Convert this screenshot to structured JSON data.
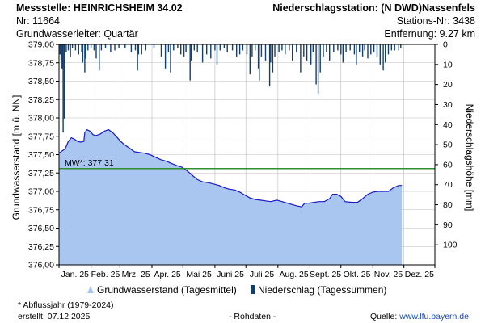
{
  "header": {
    "station_label": "Messstelle: HEINRICHSHEIM 34.02",
    "station_nr": "Nr: 11664",
    "aquifer": "Grundwasserleiter: Quartär",
    "precip_station": "Niederschlagsstation: (N DWD)Nassenfels",
    "precip_station_nr": "Stations-Nr: 3438",
    "distance": "Entfernung: 9.27 km"
  },
  "legend": {
    "gw_label": "Grundwasserstand (Tagesmittel)",
    "precip_label": "Niederschlag (Tagessummen)"
  },
  "footer": {
    "note": "* Abflussjahr (1979-2024)",
    "created": "erstellt:  07.12.2025",
    "raw": "- Rohdaten -",
    "source_prefix": "Quelle: ",
    "source_link": "www.lfu.bayern.de"
  },
  "colors": {
    "gw_fill": "#a8c6ef",
    "gw_line": "#1a1ac8",
    "precip_bar": "#123f70",
    "mean_line": "#2f8f2f",
    "grid": "#bdbdbd"
  },
  "chart_data": {
    "type": "area",
    "x_tick_labels": [
      "Jan. 25",
      "Feb. 25",
      "Mrz. 25",
      "Apr. 25",
      "Mai 25",
      "Juni 25",
      "Juli 25",
      "Aug. 25",
      "Sept. 25",
      "Okt. 25",
      "Nov. 25",
      "Dez. 25"
    ],
    "xlim": [
      "2025-01-01",
      "2025-12-31"
    ],
    "ylabel_left": "Grundwasserstand [m ü. NN]",
    "ylim_left": [
      376.0,
      379.0
    ],
    "yticks_left": [
      "376,00",
      "376,25",
      "376,50",
      "376,75",
      "377,00",
      "377,25",
      "377,50",
      "377,75",
      "378,00",
      "378,25",
      "378,50",
      "378,75",
      "379,00"
    ],
    "ylabel_right": "Niederschlagshöhe [mm]",
    "ylim_right": [
      0,
      110
    ],
    "ylim_right_inverted": true,
    "yticks_right": [
      "0",
      "10",
      "20",
      "30",
      "40",
      "50",
      "60",
      "70",
      "80",
      "90",
      "100"
    ],
    "mean_line": {
      "label": "MW*: 377.31",
      "value": 377.31
    },
    "groundwater": {
      "name": "Grundwasserstand (Tagesmittel)",
      "points": [
        [
          "2025-01-01",
          377.52
        ],
        [
          "2025-01-04",
          377.55
        ],
        [
          "2025-01-07",
          377.58
        ],
        [
          "2025-01-10",
          377.68
        ],
        [
          "2025-01-13",
          377.73
        ],
        [
          "2025-01-16",
          377.71
        ],
        [
          "2025-01-19",
          377.68
        ],
        [
          "2025-01-22",
          377.67
        ],
        [
          "2025-01-25",
          377.68
        ],
        [
          "2025-01-26",
          377.8
        ],
        [
          "2025-01-28",
          377.84
        ],
        [
          "2025-01-31",
          377.82
        ],
        [
          "2025-02-03",
          377.77
        ],
        [
          "2025-02-06",
          377.76
        ],
        [
          "2025-02-10",
          377.78
        ],
        [
          "2025-02-14",
          377.82
        ],
        [
          "2025-02-18",
          377.84
        ],
        [
          "2025-02-22",
          377.8
        ],
        [
          "2025-02-26",
          377.74
        ],
        [
          "2025-03-01",
          377.69
        ],
        [
          "2025-03-05",
          377.64
        ],
        [
          "2025-03-10",
          377.59
        ],
        [
          "2025-03-15",
          377.54
        ],
        [
          "2025-03-20",
          377.53
        ],
        [
          "2025-03-25",
          377.52
        ],
        [
          "2025-03-30",
          377.5
        ],
        [
          "2025-04-05",
          377.46
        ],
        [
          "2025-04-10",
          377.43
        ],
        [
          "2025-04-15",
          377.41
        ],
        [
          "2025-04-20",
          377.38
        ],
        [
          "2025-04-25",
          377.35
        ],
        [
          "2025-04-30",
          377.33
        ],
        [
          "2025-05-05",
          377.28
        ],
        [
          "2025-05-10",
          377.22
        ],
        [
          "2025-05-15",
          377.16
        ],
        [
          "2025-05-20",
          377.13
        ],
        [
          "2025-05-25",
          377.12
        ],
        [
          "2025-05-31",
          377.1
        ],
        [
          "2025-06-05",
          377.08
        ],
        [
          "2025-06-10",
          377.05
        ],
        [
          "2025-06-15",
          377.03
        ],
        [
          "2025-06-20",
          377.02
        ],
        [
          "2025-06-25",
          376.99
        ],
        [
          "2025-06-30",
          376.95
        ],
        [
          "2025-07-05",
          376.91
        ],
        [
          "2025-07-10",
          376.89
        ],
        [
          "2025-07-15",
          376.88
        ],
        [
          "2025-07-20",
          376.87
        ],
        [
          "2025-07-25",
          376.86
        ],
        [
          "2025-07-31",
          376.88
        ],
        [
          "2025-08-05",
          376.86
        ],
        [
          "2025-08-10",
          376.84
        ],
        [
          "2025-08-15",
          376.82
        ],
        [
          "2025-08-20",
          376.8
        ],
        [
          "2025-08-24",
          376.79
        ],
        [
          "2025-08-27",
          376.84
        ],
        [
          "2025-08-31",
          376.84
        ],
        [
          "2025-09-05",
          376.85
        ],
        [
          "2025-09-10",
          376.86
        ],
        [
          "2025-09-15",
          376.86
        ],
        [
          "2025-09-20",
          376.9
        ],
        [
          "2025-09-23",
          376.96
        ],
        [
          "2025-09-27",
          376.96
        ],
        [
          "2025-10-01",
          376.93
        ],
        [
          "2025-10-05",
          376.86
        ],
        [
          "2025-10-12",
          376.85
        ],
        [
          "2025-10-17",
          376.85
        ],
        [
          "2025-10-22",
          376.9
        ],
        [
          "2025-10-27",
          376.96
        ],
        [
          "2025-11-01",
          376.99
        ],
        [
          "2025-11-06",
          377.0
        ],
        [
          "2025-11-11",
          377.0
        ],
        [
          "2025-11-16",
          377.0
        ],
        [
          "2025-11-21",
          377.05
        ],
        [
          "2025-11-26",
          377.08
        ],
        [
          "2025-11-29",
          377.08
        ]
      ]
    },
    "precipitation": {
      "name": "Niederschlag (Tagessummen)",
      "points": [
        [
          "2025-01-02",
          5
        ],
        [
          "2025-01-03",
          8
        ],
        [
          "2025-01-04",
          12
        ],
        [
          "2025-01-05",
          44
        ],
        [
          "2025-01-06",
          37
        ],
        [
          "2025-01-08",
          4
        ],
        [
          "2025-01-10",
          3
        ],
        [
          "2025-01-12",
          6
        ],
        [
          "2025-01-14",
          2
        ],
        [
          "2025-01-17",
          3
        ],
        [
          "2025-01-20",
          5
        ],
        [
          "2025-01-23",
          4
        ],
        [
          "2025-01-24",
          9
        ],
        [
          "2025-01-26",
          14
        ],
        [
          "2025-01-27",
          7
        ],
        [
          "2025-01-29",
          3
        ],
        [
          "2025-02-01",
          2
        ],
        [
          "2025-02-04",
          3
        ],
        [
          "2025-02-06",
          7
        ],
        [
          "2025-02-09",
          13
        ],
        [
          "2025-02-11",
          3
        ],
        [
          "2025-02-15",
          2
        ],
        [
          "2025-02-20",
          4
        ],
        [
          "2025-02-24",
          3
        ],
        [
          "2025-02-28",
          2
        ],
        [
          "2025-03-06",
          2
        ],
        [
          "2025-03-12",
          4
        ],
        [
          "2025-03-16",
          3
        ],
        [
          "2025-03-18",
          13
        ],
        [
          "2025-03-19",
          5
        ],
        [
          "2025-03-22",
          5
        ],
        [
          "2025-03-26",
          3
        ],
        [
          "2025-04-03",
          2
        ],
        [
          "2025-04-10",
          6
        ],
        [
          "2025-04-14",
          12
        ],
        [
          "2025-04-17",
          4
        ],
        [
          "2025-04-19",
          14
        ],
        [
          "2025-04-22",
          3
        ],
        [
          "2025-04-26",
          2
        ],
        [
          "2025-04-29",
          5
        ],
        [
          "2025-05-02",
          6
        ],
        [
          "2025-05-04",
          4
        ],
        [
          "2025-05-08",
          18
        ],
        [
          "2025-05-09",
          8
        ],
        [
          "2025-05-12",
          3
        ],
        [
          "2025-05-15",
          4
        ],
        [
          "2025-05-20",
          9
        ],
        [
          "2025-05-24",
          5
        ],
        [
          "2025-05-28",
          7
        ],
        [
          "2025-06-01",
          3
        ],
        [
          "2025-06-03",
          10
        ],
        [
          "2025-06-06",
          3
        ],
        [
          "2025-06-10",
          2
        ],
        [
          "2025-06-13",
          4
        ],
        [
          "2025-06-18",
          3
        ],
        [
          "2025-06-22",
          6
        ],
        [
          "2025-06-25",
          5
        ],
        [
          "2025-06-28",
          3
        ],
        [
          "2025-07-02",
          5
        ],
        [
          "2025-07-05",
          15
        ],
        [
          "2025-07-07",
          6
        ],
        [
          "2025-07-10",
          3
        ],
        [
          "2025-07-13",
          12
        ],
        [
          "2025-07-14",
          18
        ],
        [
          "2025-07-16",
          6
        ],
        [
          "2025-07-20",
          8
        ],
        [
          "2025-07-24",
          21
        ],
        [
          "2025-07-25",
          9
        ],
        [
          "2025-07-27",
          14
        ],
        [
          "2025-07-29",
          6
        ],
        [
          "2025-08-02",
          4
        ],
        [
          "2025-08-05",
          3
        ],
        [
          "2025-08-08",
          5
        ],
        [
          "2025-08-12",
          3
        ],
        [
          "2025-08-15",
          8
        ],
        [
          "2025-08-19",
          4
        ],
        [
          "2025-08-23",
          14
        ],
        [
          "2025-08-26",
          6
        ],
        [
          "2025-08-29",
          8
        ],
        [
          "2025-09-02",
          10
        ],
        [
          "2025-09-04",
          4
        ],
        [
          "2025-09-07",
          20
        ],
        [
          "2025-09-09",
          25
        ],
        [
          "2025-09-11",
          14
        ],
        [
          "2025-09-14",
          6
        ],
        [
          "2025-09-17",
          4
        ],
        [
          "2025-09-20",
          8
        ],
        [
          "2025-09-24",
          4
        ],
        [
          "2025-09-28",
          3
        ],
        [
          "2025-10-01",
          5
        ],
        [
          "2025-10-03",
          9
        ],
        [
          "2025-10-06",
          4
        ],
        [
          "2025-10-10",
          3
        ],
        [
          "2025-10-14",
          5
        ],
        [
          "2025-10-16",
          10
        ],
        [
          "2025-10-19",
          4
        ],
        [
          "2025-10-22",
          6
        ],
        [
          "2025-10-24",
          3
        ],
        [
          "2025-10-27",
          7
        ],
        [
          "2025-10-30",
          5
        ],
        [
          "2025-11-02",
          4
        ],
        [
          "2025-11-05",
          6
        ],
        [
          "2025-11-08",
          10
        ],
        [
          "2025-11-11",
          13
        ],
        [
          "2025-11-13",
          9
        ],
        [
          "2025-11-16",
          5
        ],
        [
          "2025-11-19",
          3
        ],
        [
          "2025-11-22",
          3
        ],
        [
          "2025-11-26",
          3
        ],
        [
          "2025-11-28",
          2
        ]
      ]
    }
  }
}
